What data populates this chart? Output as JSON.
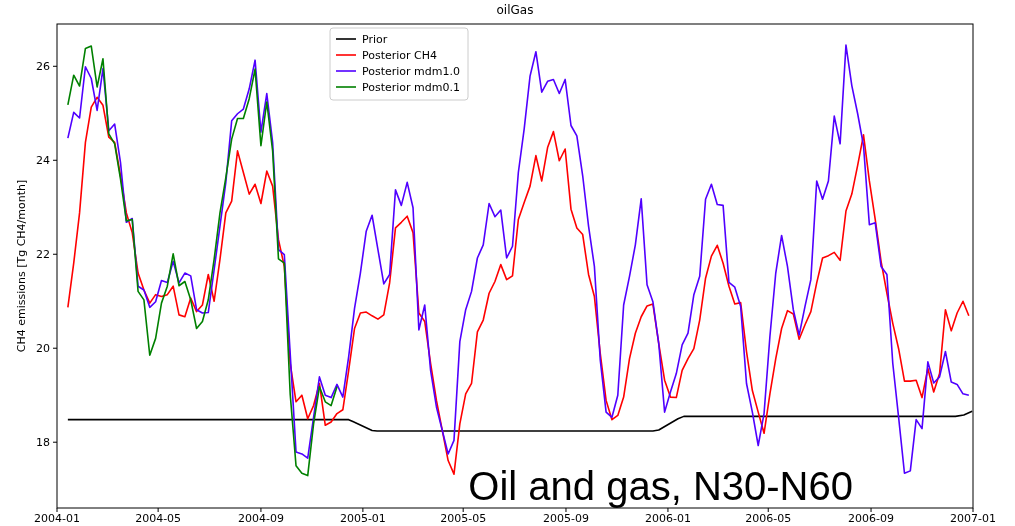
{
  "chart_data": {
    "type": "line",
    "title": "oilGas",
    "ylabel": "CH4 emissions [Tg CH4/month]",
    "annotations": [
      "Oil and gas, N30-N60"
    ],
    "x": [
      "2004-01-14",
      "2004-01-21",
      "2004-01-28",
      "2004-02-04",
      "2004-02-11",
      "2004-02-18",
      "2004-02-25",
      "2004-03-03",
      "2004-03-10",
      "2004-03-17",
      "2004-03-24",
      "2004-03-31",
      "2004-04-07",
      "2004-04-14",
      "2004-04-21",
      "2004-04-28",
      "2004-05-05",
      "2004-05-12",
      "2004-05-19",
      "2004-05-26",
      "2004-06-02",
      "2004-06-09",
      "2004-06-16",
      "2004-06-23",
      "2004-06-30",
      "2004-07-07",
      "2004-07-14",
      "2004-07-21",
      "2004-07-28",
      "2004-08-04",
      "2004-08-11",
      "2004-08-18",
      "2004-08-25",
      "2004-09-01",
      "2004-09-08",
      "2004-09-15",
      "2004-09-22",
      "2004-09-29",
      "2004-10-06",
      "2004-10-13",
      "2004-10-20",
      "2004-10-27",
      "2004-11-03",
      "2004-11-10",
      "2004-11-17",
      "2004-11-24",
      "2004-12-01",
      "2004-12-08",
      "2004-12-15",
      "2004-12-22",
      "2004-12-29",
      "2005-01-05",
      "2005-01-12",
      "2005-01-19",
      "2005-01-26",
      "2005-02-02",
      "2005-02-09",
      "2005-02-16",
      "2005-02-23",
      "2005-03-02",
      "2005-03-09",
      "2005-03-16",
      "2005-03-23",
      "2005-03-30",
      "2005-04-06",
      "2005-04-13",
      "2005-04-20",
      "2005-04-27",
      "2005-05-04",
      "2005-05-11",
      "2005-05-18",
      "2005-05-25",
      "2005-06-01",
      "2005-06-08",
      "2005-06-15",
      "2005-06-22",
      "2005-06-29",
      "2005-07-06",
      "2005-07-13",
      "2005-07-20",
      "2005-07-27",
      "2005-08-03",
      "2005-08-10",
      "2005-08-17",
      "2005-08-24",
      "2005-08-31",
      "2005-09-07",
      "2005-09-14",
      "2005-09-21",
      "2005-09-28",
      "2005-10-05",
      "2005-10-12",
      "2005-10-19",
      "2005-10-26",
      "2005-11-02",
      "2005-11-09",
      "2005-11-16",
      "2005-11-23",
      "2005-11-30",
      "2005-12-07",
      "2005-12-14",
      "2005-12-21",
      "2005-12-28",
      "2006-01-04",
      "2006-01-11",
      "2006-01-18",
      "2006-01-25",
      "2006-02-01",
      "2006-02-08",
      "2006-02-15",
      "2006-02-22",
      "2006-03-01",
      "2006-03-08",
      "2006-03-15",
      "2006-03-22",
      "2006-03-29",
      "2006-04-05",
      "2006-04-12",
      "2006-04-19",
      "2006-04-26",
      "2006-05-03",
      "2006-05-10",
      "2006-05-17",
      "2006-05-24",
      "2006-05-31",
      "2006-06-07",
      "2006-06-14",
      "2006-06-21",
      "2006-06-28",
      "2006-07-05",
      "2006-07-12",
      "2006-07-19",
      "2006-07-26",
      "2006-08-02",
      "2006-08-09",
      "2006-08-16",
      "2006-08-23",
      "2006-08-30",
      "2006-09-06",
      "2006-09-13",
      "2006-09-20",
      "2006-09-27",
      "2006-10-04",
      "2006-10-11",
      "2006-10-18",
      "2006-10-25",
      "2006-11-01",
      "2006-11-08",
      "2006-11-15",
      "2006-11-22",
      "2006-11-29",
      "2006-12-06",
      "2006-12-13",
      "2006-12-20",
      "2006-12-27"
    ],
    "series": [
      {
        "name": "Prior",
        "color": "#000000",
        "x": [
          "2004-01-14",
          "2004-12-15",
          "2004-12-20",
          "2005-01-12",
          "2005-01-18",
          "2005-12-14",
          "2005-12-21",
          "2006-01-13",
          "2006-01-20",
          "2006-12-11",
          "2006-12-21",
          "2006-12-31"
        ],
        "values": [
          18.48,
          18.48,
          18.44,
          18.25,
          18.24,
          18.24,
          18.26,
          18.5,
          18.55,
          18.55,
          18.58,
          18.66
        ]
      },
      {
        "name": "Posterior CH4",
        "color": "#ff0000",
        "values": [
          20.87,
          21.81,
          22.88,
          24.38,
          25.13,
          25.34,
          25.17,
          24.49,
          24.38,
          23.67,
          22.88,
          22.46,
          21.6,
          21.24,
          20.96,
          21.14,
          21.1,
          21.14,
          21.32,
          20.71,
          20.67,
          21.07,
          20.78,
          20.92,
          21.57,
          21.0,
          21.89,
          22.88,
          23.13,
          24.2,
          23.74,
          23.28,
          23.49,
          23.08,
          23.77,
          23.45,
          22.31,
          21.74,
          19.68,
          18.86,
          19.0,
          18.5,
          18.78,
          19.25,
          18.36,
          18.43,
          18.61,
          18.69,
          19.53,
          20.42,
          20.75,
          20.77,
          20.69,
          20.62,
          20.71,
          21.39,
          22.56,
          22.68,
          22.81,
          22.46,
          20.75,
          20.57,
          19.68,
          18.89,
          18.25,
          17.61,
          17.32,
          18.39,
          19.03,
          19.25,
          20.35,
          20.6,
          21.17,
          21.42,
          21.78,
          21.46,
          21.54,
          22.74,
          23.1,
          23.45,
          24.1,
          23.56,
          24.27,
          24.61,
          23.99,
          24.24,
          22.96,
          22.56,
          22.42,
          21.57,
          21.1,
          19.89,
          18.89,
          18.48,
          18.57,
          18.96,
          19.78,
          20.32,
          20.67,
          20.9,
          20.94,
          20.1,
          19.32,
          18.96,
          18.95,
          19.53,
          19.78,
          19.99,
          20.6,
          21.49,
          21.96,
          22.19,
          21.81,
          21.32,
          20.94,
          20.97,
          19.93,
          19.1,
          18.64,
          18.19,
          19.03,
          19.78,
          20.42,
          20.8,
          20.73,
          20.19,
          20.5,
          20.78,
          21.39,
          21.92,
          21.97,
          22.04,
          21.87,
          22.92,
          23.28,
          23.89,
          24.54,
          23.56,
          22.74,
          21.85,
          21.17,
          20.53,
          19.99,
          19.3,
          19.3,
          19.32,
          18.95,
          19.57,
          19.07,
          19.46,
          20.82,
          20.37,
          20.75,
          21.0,
          20.69
        ]
      },
      {
        "name": "Posterior mdm1.0",
        "color": "#5000ff",
        "values": [
          24.47,
          25.02,
          24.9,
          25.99,
          25.74,
          25.06,
          25.95,
          24.63,
          24.77,
          23.95,
          22.68,
          22.76,
          21.32,
          21.24,
          20.87,
          20.99,
          21.44,
          21.4,
          21.85,
          21.39,
          21.6,
          21.54,
          20.82,
          20.75,
          20.76,
          21.67,
          22.6,
          23.53,
          24.84,
          24.99,
          25.09,
          25.52,
          26.13,
          24.6,
          25.42,
          24.38,
          22.1,
          21.99,
          19.89,
          17.79,
          17.75,
          17.66,
          18.53,
          19.39,
          19.0,
          18.95,
          19.23,
          18.96,
          19.82,
          20.85,
          21.6,
          22.49,
          22.83,
          22.1,
          21.37,
          21.57,
          23.37,
          23.04,
          23.53,
          22.99,
          20.39,
          20.92,
          19.53,
          18.75,
          18.25,
          17.75,
          18.04,
          20.14,
          20.82,
          21.21,
          21.92,
          22.2,
          23.08,
          22.8,
          22.94,
          21.92,
          22.17,
          23.74,
          24.67,
          25.79,
          26.31,
          25.45,
          25.68,
          25.72,
          25.42,
          25.72,
          24.74,
          24.52,
          23.67,
          22.6,
          21.74,
          19.75,
          18.64,
          18.53,
          19.0,
          20.92,
          21.53,
          22.2,
          23.18,
          21.35,
          20.99,
          20.1,
          18.64,
          19.07,
          19.46,
          20.07,
          20.32,
          21.14,
          21.53,
          23.17,
          23.49,
          23.06,
          23.04,
          21.4,
          21.3,
          20.89,
          19.25,
          18.64,
          17.93,
          18.61,
          20.25,
          21.6,
          22.4,
          21.74,
          20.82,
          20.28,
          20.89,
          21.46,
          23.56,
          23.17,
          23.56,
          24.94,
          24.35,
          26.45,
          25.59,
          24.99,
          24.31,
          22.63,
          22.67,
          21.74,
          21.57,
          19.68,
          18.53,
          17.34,
          17.39,
          18.48,
          18.29,
          19.71,
          19.26,
          19.39,
          19.93,
          19.28,
          19.23,
          19.03,
          19.0
        ]
      },
      {
        "name": "Posterior mdm0.1",
        "color": "#008000",
        "x": [
          "2004-01-14",
          "2004-01-21",
          "2004-01-28",
          "2004-02-04",
          "2004-02-11",
          "2004-02-18",
          "2004-02-25",
          "2004-03-03",
          "2004-03-10",
          "2004-03-17",
          "2004-03-24",
          "2004-03-31",
          "2004-04-07",
          "2004-04-14",
          "2004-04-21",
          "2004-04-28",
          "2004-05-05",
          "2004-05-12",
          "2004-05-19",
          "2004-05-26",
          "2004-06-02",
          "2004-06-09",
          "2004-06-16",
          "2004-06-23",
          "2004-06-30",
          "2004-07-07",
          "2004-07-14",
          "2004-07-21",
          "2004-07-28",
          "2004-08-04",
          "2004-08-11",
          "2004-08-18",
          "2004-08-25",
          "2004-09-01",
          "2004-09-08",
          "2004-09-15",
          "2004-09-22",
          "2004-09-29",
          "2004-10-06",
          "2004-10-13",
          "2004-10-20",
          "2004-10-27",
          "2004-11-03",
          "2004-11-10",
          "2004-11-17",
          "2004-11-24",
          "2004-12-01"
        ],
        "values": [
          25.18,
          25.81,
          25.58,
          26.38,
          26.43,
          25.56,
          26.16,
          24.56,
          24.35,
          23.6,
          22.71,
          22.74,
          21.21,
          21.03,
          19.85,
          20.21,
          20.96,
          21.32,
          22.01,
          21.33,
          21.42,
          21.03,
          20.42,
          20.57,
          21.03,
          21.89,
          22.88,
          23.63,
          24.45,
          24.89,
          24.89,
          25.31,
          25.94,
          24.31,
          25.24,
          24.2,
          21.9,
          21.81,
          19.03,
          17.5,
          17.34,
          17.29,
          18.39,
          19.18,
          18.86,
          18.78,
          19.18
        ]
      }
    ],
    "xlim": [
      "2004-01",
      "2007-01"
    ],
    "xticks": [
      "2004-01",
      "2004-05",
      "2004-09",
      "2005-01",
      "2005-05",
      "2005-09",
      "2006-01",
      "2006-05",
      "2006-09",
      "2007-01"
    ],
    "ylim": [
      16.6,
      26.9
    ],
    "yticks": [
      18,
      20,
      22,
      24,
      26
    ],
    "grid": false,
    "legend": "top",
    "line_style": "solid",
    "marker": "none"
  }
}
